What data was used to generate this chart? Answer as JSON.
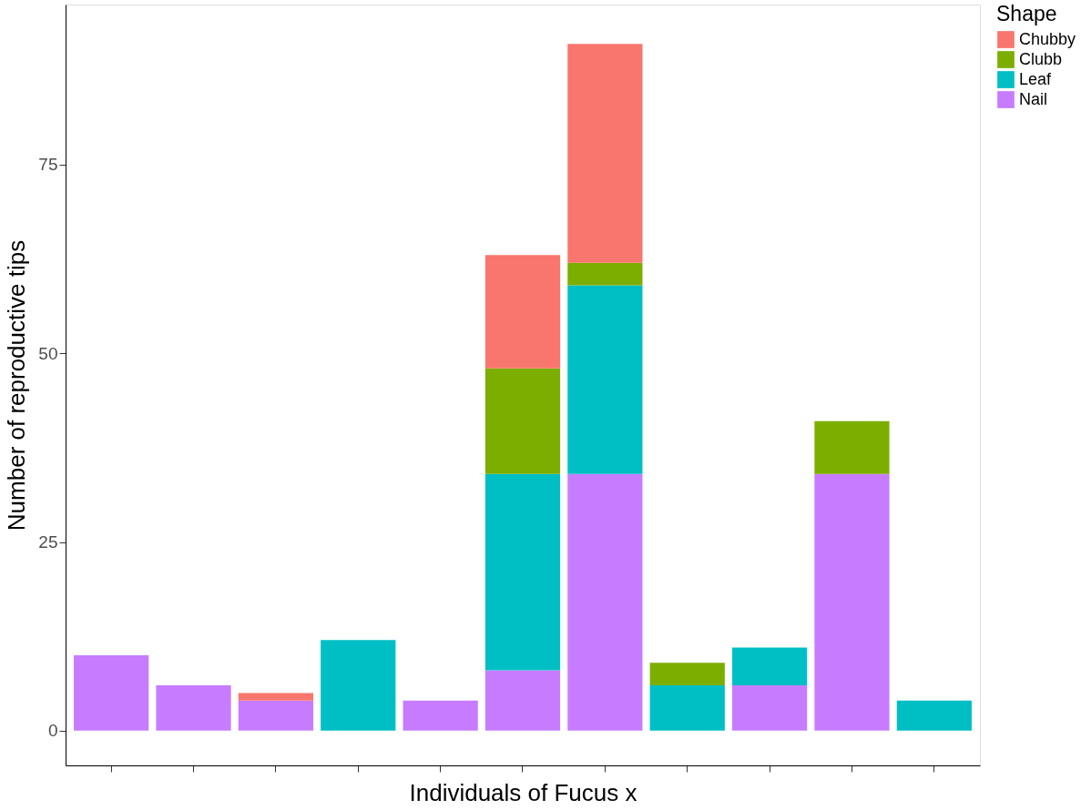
{
  "chart_data": {
    "type": "bar",
    "stacked": true,
    "xlabel": "Individuals of Fucus x",
    "ylabel": "Number of reproductive tips",
    "legend_title": "Shape",
    "categories": [
      null,
      null,
      null,
      null,
      null,
      null,
      null,
      null,
      null,
      null,
      null
    ],
    "series": [
      {
        "name": "Nail",
        "color": "#c77cff",
        "values": [
          10,
          6,
          4,
          0,
          4,
          8,
          34,
          0,
          6,
          34,
          0
        ]
      },
      {
        "name": "Leaf",
        "color": "#00bfc4",
        "values": [
          0,
          0,
          0,
          12,
          0,
          26,
          25,
          6,
          5,
          0,
          4
        ]
      },
      {
        "name": "Clubb",
        "color": "#7cae00",
        "values": [
          0,
          0,
          0,
          0,
          0,
          14,
          3,
          3,
          0,
          7,
          0
        ]
      },
      {
        "name": "Chubby",
        "color": "#f8766d",
        "values": [
          0,
          0,
          1,
          0,
          0,
          15,
          29,
          0,
          0,
          0,
          0
        ]
      }
    ],
    "ylim": [
      -4.6,
      96.2
    ],
    "yticks": [
      0,
      25,
      50,
      75
    ],
    "grid": false,
    "legend": "right",
    "tick_labels": "y"
  }
}
